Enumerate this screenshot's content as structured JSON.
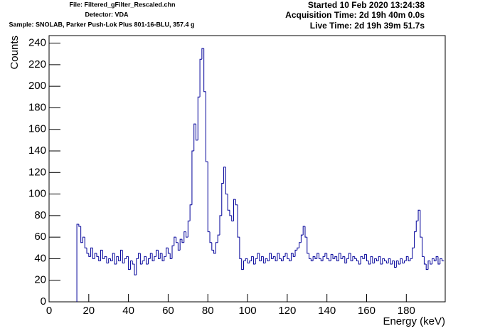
{
  "chart_data": {
    "type": "histogram",
    "header_left": [
      "File: Filtered_gFilter_Rescaled.chn",
      "Detector: VDA",
      "Sample: SNOLAB, Parker Push-Lok Plus 801-16-BLU, 357.4 g"
    ],
    "header_right": [
      "Started 10 Feb 2020 13:24:38",
      "Acquisition Time: 2d 19h 40m 0.0s",
      "Live Time: 2d 19h 39m 51.7s"
    ],
    "x_label": "Energy (keV)",
    "y_label": "Counts",
    "color": "#000099",
    "xlim": [
      0,
      199.6
    ],
    "ylim": [
      0,
      247
    ],
    "xticks": [
      0,
      20,
      40,
      60,
      80,
      100,
      120,
      140,
      160,
      180
    ],
    "yticks": [
      0,
      20,
      40,
      60,
      80,
      100,
      120,
      140,
      160,
      180,
      200,
      220,
      240
    ],
    "bins": [
      14,
      15,
      16,
      17,
      18,
      19,
      20,
      21,
      22,
      23,
      24,
      25,
      26,
      27,
      28,
      29,
      30,
      31,
      32,
      33,
      34,
      35,
      36,
      37,
      38,
      39,
      40,
      41,
      42,
      43,
      44,
      45,
      46,
      47,
      48,
      49,
      50,
      51,
      52,
      53,
      54,
      55,
      56,
      57,
      58,
      59,
      60,
      61,
      62,
      63,
      64,
      65,
      66,
      67,
      68,
      69,
      70,
      71,
      72,
      73,
      74,
      75,
      76,
      77,
      78,
      79,
      80,
      81,
      82,
      83,
      84,
      85,
      86,
      87,
      88,
      89,
      90,
      91,
      92,
      93,
      94,
      95,
      96,
      97,
      98,
      99,
      100,
      101,
      102,
      103,
      104,
      105,
      106,
      107,
      108,
      109,
      110,
      111,
      112,
      113,
      114,
      115,
      116,
      117,
      118,
      119,
      120,
      121,
      122,
      123,
      124,
      125,
      126,
      127,
      128,
      129,
      130,
      131,
      132,
      133,
      134,
      135,
      136,
      137,
      138,
      139,
      140,
      141,
      142,
      143,
      144,
      145,
      146,
      147,
      148,
      149,
      150,
      151,
      152,
      153,
      154,
      155,
      156,
      157,
      158,
      159,
      160,
      161,
      162,
      163,
      164,
      165,
      166,
      167,
      168,
      169,
      170,
      171,
      172,
      173,
      174,
      175,
      176,
      177,
      178,
      179,
      180,
      181,
      182,
      183,
      184,
      185,
      186,
      187,
      188,
      189,
      190,
      191,
      192,
      193,
      194,
      195,
      196,
      197,
      198,
      199
    ],
    "counts": [
      72,
      70,
      55,
      60,
      50,
      45,
      42,
      50,
      40,
      45,
      42,
      38,
      48,
      40,
      42,
      36,
      40,
      38,
      45,
      35,
      42,
      38,
      48,
      36,
      40,
      42,
      30,
      38,
      35,
      25,
      40,
      45,
      35,
      38,
      42,
      35,
      40,
      45,
      38,
      42,
      48,
      40,
      45,
      38,
      42,
      50,
      45,
      40,
      52,
      60,
      55,
      48,
      58,
      55,
      65,
      60,
      75,
      90,
      140,
      165,
      150,
      190,
      225,
      235,
      195,
      130,
      65,
      55,
      48,
      45,
      55,
      62,
      80,
      110,
      125,
      100,
      85,
      80,
      75,
      95,
      90,
      60,
      40,
      30,
      38,
      40,
      36,
      38,
      42,
      35,
      40,
      45,
      38,
      42,
      36,
      40,
      38,
      45,
      40,
      42,
      38,
      45,
      40,
      38,
      42,
      45,
      40,
      38,
      45,
      42,
      48,
      50,
      55,
      62,
      70,
      60,
      45,
      40,
      38,
      42,
      40,
      45,
      40,
      38,
      42,
      45,
      40,
      38,
      44,
      40,
      42,
      38,
      45,
      40,
      42,
      36,
      40,
      45,
      38,
      42,
      40,
      38,
      35,
      42,
      40,
      44,
      38,
      35,
      42,
      36,
      40,
      38,
      42,
      35,
      40,
      38,
      36,
      40,
      35,
      38,
      32,
      38,
      35,
      40,
      36,
      38,
      42,
      38,
      40,
      50,
      65,
      75,
      85,
      60,
      42,
      35,
      30,
      38,
      35,
      40,
      38,
      42,
      35,
      40,
      38
    ]
  }
}
